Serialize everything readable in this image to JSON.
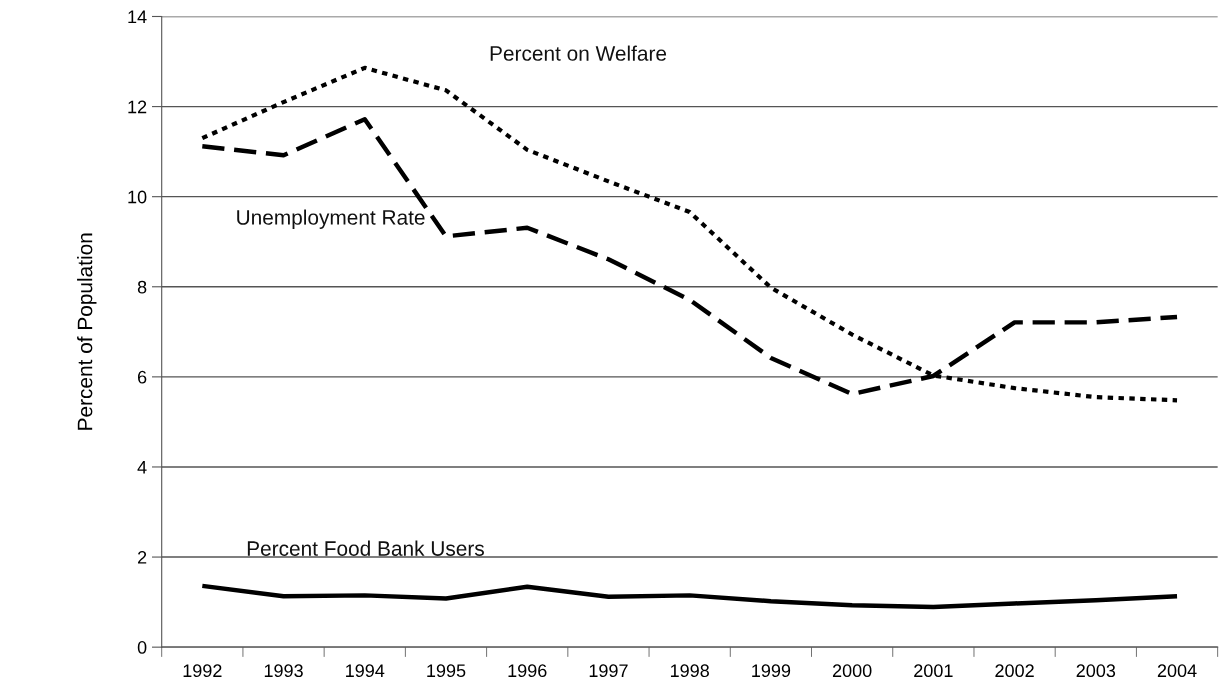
{
  "chart_data": {
    "type": "line",
    "ylabel": "Percent of Population",
    "categories": [
      "1992",
      "1993",
      "1994",
      "1995",
      "1996",
      "1997",
      "1998",
      "1999",
      "2000",
      "2001",
      "2002",
      "2003",
      "2004"
    ],
    "series": [
      {
        "name": "Percent on Welfare",
        "color": "#000000",
        "line_style": "dotted",
        "values": [
          11.3,
          12.1,
          12.86,
          12.36,
          11.04,
          10.34,
          9.66,
          7.98,
          6.94,
          6.03,
          5.75,
          5.55,
          5.48
        ]
      },
      {
        "name": "Unemployment Rate",
        "color": "#000000",
        "line_style": "dashed",
        "values": [
          11.12,
          10.92,
          11.72,
          9.12,
          9.31,
          8.61,
          7.71,
          6.42,
          5.62,
          6.02,
          7.21,
          7.21,
          7.33
        ]
      },
      {
        "name": "Percent Food Bank Users",
        "color": "#000000",
        "line_style": "solid",
        "values": [
          1.36,
          1.13,
          1.15,
          1.08,
          1.34,
          1.12,
          1.15,
          1.02,
          0.93,
          0.89,
          0.97,
          1.04,
          1.13
        ]
      }
    ],
    "ylim": [
      0,
      14
    ],
    "yticks": [
      0,
      2,
      4,
      6,
      8,
      10,
      12,
      14
    ],
    "grid": "y",
    "legend": false,
    "marker": "none"
  }
}
